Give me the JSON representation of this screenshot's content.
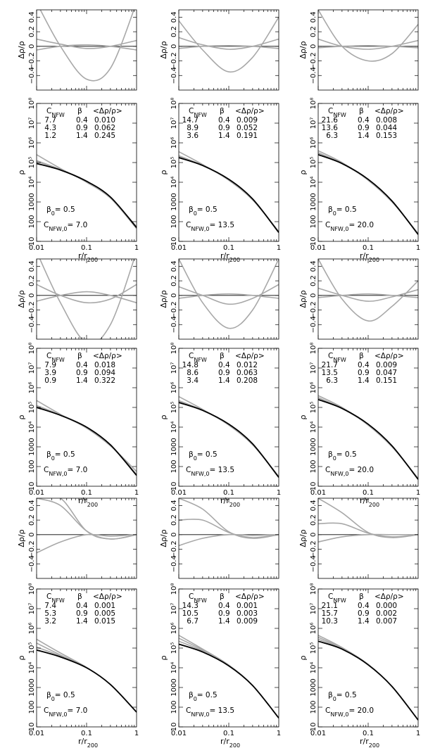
{
  "figure": {
    "row_common": {
      "residual_ylabel": "Δρ/ρ",
      "density_ylabel": "ρ",
      "density_xlabel": "r/r200",
      "residual_ylim": [
        -0.6,
        0.5
      ],
      "residual_ytick_values": [
        -0.4,
        -0.2,
        0,
        0.2,
        0.4
      ],
      "residual_ytick_labels": [
        "−0.4",
        "−0.2",
        "0",
        "0.2",
        "0.4"
      ],
      "density_ylim_log10": [
        1,
        8
      ],
      "density_ytick_labels": [
        "10",
        "100",
        "1000",
        "10⁴",
        "10⁵",
        "10⁶",
        "10⁷",
        "10⁸"
      ],
      "xlim": [
        0.01,
        1
      ],
      "xscale": "log",
      "xtick_values": [
        0.01,
        0.1,
        1
      ],
      "xtick_labels": [
        "0.01",
        "0.1",
        "1"
      ],
      "table_header": [
        "CNFW",
        "β",
        "<Δρ/ρ>"
      ],
      "beta0_label": "β0= 0.5",
      "cnfw0_prefix": "CNFW,0="
    }
  },
  "chart_data": [
    {
      "type": "line",
      "panel": "row1-col1",
      "cnfw0": "7.0",
      "table": [
        [
          "7.7",
          "0.4",
          "0.010"
        ],
        [
          "4.3",
          "0.9",
          "0.062"
        ],
        [
          "1.2",
          "1.4",
          "0.245"
        ]
      ],
      "density_series_log10": {
        "x": [
          0.01,
          0.03,
          0.1,
          0.3,
          1
        ],
        "data": [
          4.95,
          4.62,
          4.05,
          3.25,
          1.7
        ],
        "fits": [
          [
            5.1,
            4.65,
            4.05,
            3.2,
            1.65
          ],
          [
            5.05,
            4.65,
            4.05,
            3.22,
            1.7
          ],
          [
            5.4,
            4.7,
            4.0,
            3.2,
            1.75
          ]
        ]
      },
      "residual_series": [
        {
          "name": "fit1",
          "x": [
            0.01,
            0.03,
            0.1,
            0.3,
            1
          ],
          "y": [
            -0.05,
            0.0,
            0.02,
            0.0,
            -0.05
          ]
        },
        {
          "name": "fit2",
          "x": [
            0.01,
            0.03,
            0.1,
            0.3,
            1
          ],
          "y": [
            0.1,
            0.03,
            -0.03,
            0.0,
            0.08
          ]
        },
        {
          "name": "fit3",
          "x": [
            0.01,
            0.03,
            0.1,
            0.3,
            1
          ],
          "y": [
            0.6,
            0.0,
            -0.45,
            -0.3,
            0.6
          ]
        }
      ]
    },
    {
      "type": "line",
      "panel": "row1-col2",
      "cnfw0": "13.5",
      "table": [
        [
          "14.7",
          "0.4",
          "0.009"
        ],
        [
          "8.9",
          "0.9",
          "0.052"
        ],
        [
          "3.6",
          "1.4",
          "0.191"
        ]
      ],
      "density_series_log10": {
        "x": [
          0.01,
          0.03,
          0.1,
          0.3,
          1
        ],
        "data": [
          5.25,
          4.85,
          4.15,
          3.15,
          1.45
        ],
        "fits": [
          [
            5.35,
            4.85,
            4.12,
            3.12,
            1.45
          ],
          [
            5.3,
            4.87,
            4.13,
            3.13,
            1.48
          ],
          [
            5.55,
            4.9,
            4.1,
            3.1,
            1.5
          ]
        ]
      },
      "residual_series": [
        {
          "name": "fit1",
          "x": [
            0.01,
            0.03,
            0.1,
            0.3,
            1
          ],
          "y": [
            -0.03,
            0.0,
            0.01,
            0.0,
            -0.03
          ]
        },
        {
          "name": "fit2",
          "x": [
            0.01,
            0.03,
            0.1,
            0.3,
            1
          ],
          "y": [
            0.12,
            0.02,
            -0.04,
            0.0,
            0.1
          ]
        },
        {
          "name": "fit3",
          "x": [
            0.01,
            0.03,
            0.1,
            0.3,
            1
          ],
          "y": [
            0.35,
            -0.05,
            -0.35,
            -0.15,
            0.4
          ]
        }
      ]
    },
    {
      "type": "line",
      "panel": "row1-col3",
      "cnfw0": "20.0",
      "table": [
        [
          "21.6",
          "0.4",
          "0.008"
        ],
        [
          "13.6",
          "0.9",
          "0.044"
        ],
        [
          "6.3",
          "1.4",
          "0.153"
        ]
      ],
      "density_series_log10": {
        "x": [
          0.01,
          0.03,
          0.1,
          0.3,
          1
        ],
        "data": [
          5.4,
          4.95,
          4.15,
          3.05,
          1.35
        ],
        "fits": [
          [
            5.5,
            4.95,
            4.12,
            3.03,
            1.35
          ],
          [
            5.45,
            4.97,
            4.13,
            3.04,
            1.37
          ],
          [
            5.6,
            5.0,
            4.1,
            3.0,
            1.4
          ]
        ]
      },
      "residual_series": [
        {
          "name": "fit1",
          "x": [
            0.01,
            0.03,
            0.1,
            0.3,
            1
          ],
          "y": [
            -0.02,
            0.0,
            0.01,
            0.0,
            -0.02
          ]
        },
        {
          "name": "fit2",
          "x": [
            0.01,
            0.03,
            0.1,
            0.3,
            1
          ],
          "y": [
            0.1,
            0.0,
            -0.04,
            0.0,
            0.08
          ]
        },
        {
          "name": "fit3",
          "x": [
            0.01,
            0.03,
            0.1,
            0.3,
            1
          ],
          "y": [
            0.5,
            0.0,
            -0.2,
            -0.1,
            0.3
          ]
        }
      ]
    },
    {
      "type": "line",
      "panel": "row2-col1",
      "cnfw0": "7.0",
      "table": [
        [
          "7.9",
          "0.4",
          "0.018"
        ],
        [
          "3.9",
          "0.9",
          "0.094"
        ],
        [
          "0.9",
          "1.4",
          "0.322"
        ]
      ],
      "density_series_log10": {
        "x": [
          0.01,
          0.03,
          0.1,
          0.3,
          1
        ],
        "data": [
          5.0,
          4.6,
          4.0,
          3.1,
          1.55
        ],
        "fits": [
          [
            5.1,
            4.62,
            3.98,
            3.08,
            1.55
          ],
          [
            5.05,
            4.63,
            4.0,
            3.1,
            1.6
          ],
          [
            5.35,
            4.65,
            3.95,
            3.05,
            1.75
          ]
        ]
      },
      "residual_series": [
        {
          "name": "fit1",
          "x": [
            0.01,
            0.03,
            0.1,
            0.3,
            1
          ],
          "y": [
            -0.08,
            0.0,
            0.05,
            0.0,
            -0.1
          ]
        },
        {
          "name": "fit2",
          "x": [
            0.01,
            0.03,
            0.1,
            0.3,
            1
          ],
          "y": [
            0.15,
            0.0,
            -0.1,
            -0.05,
            0.15
          ]
        },
        {
          "name": "fit3",
          "x": [
            0.01,
            0.03,
            0.1,
            0.3,
            1
          ],
          "y": [
            0.6,
            -0.1,
            -0.65,
            -0.4,
            0.6
          ]
        }
      ]
    },
    {
      "type": "line",
      "panel": "row2-col2",
      "cnfw0": "13.5",
      "table": [
        [
          "14.8",
          "0.4",
          "0.012"
        ],
        [
          "8.6",
          "0.9",
          "0.063"
        ],
        [
          "3.4",
          "1.4",
          "0.208"
        ]
      ],
      "density_series_log10": {
        "x": [
          0.01,
          0.03,
          0.1,
          0.3,
          1
        ],
        "data": [
          5.25,
          4.85,
          4.15,
          3.15,
          1.45
        ],
        "fits": [
          [
            5.35,
            4.85,
            4.12,
            3.12,
            1.45
          ],
          [
            5.3,
            4.87,
            4.13,
            3.13,
            1.48
          ],
          [
            5.55,
            4.9,
            4.1,
            3.1,
            1.5
          ]
        ]
      },
      "residual_series": [
        {
          "name": "fit1",
          "x": [
            0.01,
            0.03,
            0.1,
            0.3,
            1
          ],
          "y": [
            -0.04,
            0.0,
            0.02,
            0.0,
            -0.04
          ]
        },
        {
          "name": "fit2",
          "x": [
            0.01,
            0.03,
            0.1,
            0.3,
            1
          ],
          "y": [
            0.12,
            0.0,
            -0.12,
            -0.04,
            0.15
          ]
        },
        {
          "name": "fit3",
          "x": [
            0.01,
            0.03,
            0.1,
            0.3,
            1
          ],
          "y": [
            0.5,
            -0.1,
            -0.45,
            -0.2,
            0.5
          ]
        }
      ]
    },
    {
      "type": "line",
      "panel": "row2-col3",
      "cnfw0": "20.0",
      "table": [
        [
          "21.7",
          "0.4",
          "0.009"
        ],
        [
          "13.5",
          "0.9",
          "0.047"
        ],
        [
          "6.3",
          "1.4",
          "0.151"
        ]
      ],
      "density_series_log10": {
        "x": [
          0.01,
          0.03,
          0.1,
          0.3,
          1
        ],
        "data": [
          5.4,
          4.95,
          4.15,
          3.05,
          1.35
        ],
        "fits": [
          [
            5.5,
            4.95,
            4.12,
            3.03,
            1.35
          ],
          [
            5.45,
            4.97,
            4.13,
            3.04,
            1.37
          ],
          [
            5.6,
            5.0,
            4.1,
            3.0,
            1.4
          ]
        ]
      },
      "residual_series": [
        {
          "name": "fit1",
          "x": [
            0.01,
            0.03,
            0.1,
            0.3,
            1
          ],
          "y": [
            -0.03,
            0.0,
            0.02,
            0.0,
            -0.03
          ]
        },
        {
          "name": "fit2",
          "x": [
            0.01,
            0.03,
            0.1,
            0.3,
            1
          ],
          "y": [
            0.1,
            0.0,
            -0.08,
            -0.02,
            0.08
          ]
        },
        {
          "name": "fit3",
          "x": [
            0.01,
            0.03,
            0.1,
            0.3,
            1
          ],
          "y": [
            0.5,
            -0.05,
            -0.35,
            -0.15,
            0.2
          ]
        }
      ]
    },
    {
      "type": "line",
      "panel": "row3-col1",
      "cnfw0": "7.0",
      "table": [
        [
          "7.4",
          "0.4",
          "0.001"
        ],
        [
          "5.3",
          "0.9",
          "0.005"
        ],
        [
          "3.2",
          "1.4",
          "0.015"
        ]
      ],
      "density_series_log10": {
        "x": [
          0.01,
          0.03,
          0.1,
          0.3,
          1
        ],
        "data": [
          4.9,
          4.55,
          4.0,
          3.15,
          1.75
        ],
        "fits": [
          [
            5.05,
            4.6,
            4.0,
            3.15,
            1.75
          ],
          [
            5.25,
            4.65,
            4.01,
            3.15,
            1.75
          ],
          [
            5.45,
            4.75,
            4.02,
            3.15,
            1.75
          ]
        ]
      },
      "residual_series": [
        {
          "name": "fit1",
          "x": [
            0.01,
            0.03,
            0.1,
            0.3,
            1
          ],
          "y": [
            -0.25,
            -0.1,
            0.0,
            -0.02,
            0.0
          ]
        },
        {
          "name": "fit2",
          "x": [
            0.01,
            0.03,
            0.1,
            0.3,
            1
          ],
          "y": [
            0.5,
            0.4,
            0.05,
            -0.06,
            0.0
          ]
        },
        {
          "name": "fit3",
          "x": [
            0.01,
            0.03,
            0.1,
            0.3,
            1
          ],
          "y": [
            0.5,
            0.5,
            0.05,
            -0.06,
            0.0
          ]
        }
      ]
    },
    {
      "type": "line",
      "panel": "row3-col2",
      "cnfw0": "13.5",
      "table": [
        [
          "14.3",
          "0.4",
          "0.001"
        ],
        [
          "10.5",
          "0.9",
          "0.003"
        ],
        [
          "6.7",
          "1.4",
          "0.009"
        ]
      ],
      "density_series_log10": {
        "x": [
          0.01,
          0.03,
          0.1,
          0.3,
          1
        ],
        "data": [
          5.2,
          4.8,
          4.1,
          3.1,
          1.45
        ],
        "fits": [
          [
            5.35,
            4.85,
            4.12,
            3.1,
            1.45
          ],
          [
            5.5,
            4.9,
            4.13,
            3.1,
            1.45
          ],
          [
            5.65,
            4.95,
            4.14,
            3.1,
            1.45
          ]
        ]
      },
      "residual_series": [
        {
          "name": "fit1",
          "x": [
            0.01,
            0.03,
            0.1,
            0.3,
            1
          ],
          "y": [
            -0.15,
            -0.05,
            0.0,
            -0.01,
            0.0
          ]
        },
        {
          "name": "fit2",
          "x": [
            0.01,
            0.03,
            0.1,
            0.3,
            1
          ],
          "y": [
            0.2,
            0.2,
            0.03,
            -0.04,
            0.0
          ]
        },
        {
          "name": "fit3",
          "x": [
            0.01,
            0.03,
            0.1,
            0.3,
            1
          ],
          "y": [
            0.5,
            0.35,
            0.04,
            -0.05,
            0.0
          ]
        }
      ]
    },
    {
      "type": "line",
      "panel": "row3-col3",
      "cnfw0": "20.0",
      "table": [
        [
          "21.1",
          "0.4",
          "0.000"
        ],
        [
          "15.7",
          "0.9",
          "0.002"
        ],
        [
          "10.3",
          "1.4",
          "0.007"
        ]
      ],
      "density_series_log10": {
        "x": [
          0.01,
          0.03,
          0.1,
          0.3,
          1
        ],
        "data": [
          5.35,
          4.95,
          4.15,
          3.05,
          1.35
        ],
        "fits": [
          [
            5.45,
            4.97,
            4.16,
            3.05,
            1.35
          ],
          [
            5.55,
            5.0,
            4.17,
            3.05,
            1.35
          ],
          [
            5.65,
            5.03,
            4.18,
            3.05,
            1.35
          ]
        ]
      },
      "residual_series": [
        {
          "name": "fit1",
          "x": [
            0.01,
            0.03,
            0.1,
            0.3,
            1
          ],
          "y": [
            -0.1,
            -0.03,
            0.0,
            0.0,
            0.0
          ]
        },
        {
          "name": "fit2",
          "x": [
            0.01,
            0.03,
            0.1,
            0.3,
            1
          ],
          "y": [
            0.15,
            0.15,
            0.02,
            -0.03,
            0.0
          ]
        },
        {
          "name": "fit3",
          "x": [
            0.01,
            0.03,
            0.1,
            0.3,
            1
          ],
          "y": [
            0.5,
            0.3,
            0.03,
            -0.04,
            0.0
          ]
        }
      ]
    }
  ]
}
